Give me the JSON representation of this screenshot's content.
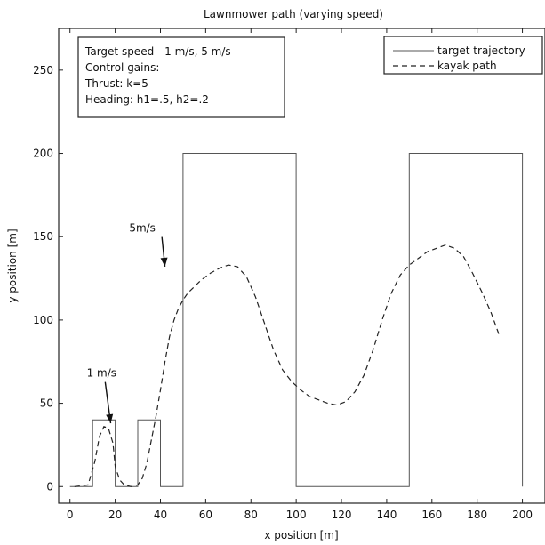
{
  "chart_data": {
    "type": "line",
    "title": "Lawnmower path (varying speed)",
    "xlabel": "x position [m]",
    "ylabel": "y position [m]",
    "xlim": [
      -5,
      210
    ],
    "ylim": [
      -10,
      275
    ],
    "xticks": [
      0,
      20,
      40,
      60,
      80,
      100,
      120,
      140,
      160,
      180,
      200
    ],
    "yticks": [
      0,
      50,
      100,
      150,
      200,
      250
    ],
    "grid": false,
    "legend_position": "top-right",
    "series": [
      {
        "name": "target trajectory",
        "style": "solid",
        "color": "#555555",
        "x": [
          0,
          10,
          10,
          20,
          20,
          30,
          30,
          40,
          40,
          50,
          50,
          100,
          100,
          150,
          150,
          200,
          200
        ],
        "y": [
          0,
          0,
          40,
          40,
          0,
          0,
          40,
          40,
          0,
          0,
          200,
          200,
          0,
          0,
          200,
          200,
          0
        ]
      },
      {
        "name": "kayak path",
        "style": "dashed",
        "color": "#222222",
        "x": [
          2,
          8,
          11,
          13,
          15,
          17,
          19,
          20,
          22,
          24,
          27,
          30,
          32,
          34,
          36,
          38,
          40,
          42,
          44,
          46,
          48,
          50,
          52,
          55,
          58,
          62,
          66,
          70,
          74,
          78,
          82,
          86,
          90,
          94,
          98,
          102,
          106,
          110,
          114,
          118,
          122,
          126,
          130,
          134,
          138,
          142,
          146,
          150,
          154,
          158,
          162,
          166,
          170,
          174,
          178,
          182,
          186,
          190
        ],
        "y": [
          0,
          1,
          15,
          30,
          36,
          35,
          26,
          12,
          4,
          1,
          0,
          1,
          5,
          14,
          28,
          42,
          58,
          75,
          90,
          100,
          107,
          112,
          116,
          120,
          124,
          128,
          131,
          133,
          132,
          126,
          114,
          98,
          82,
          70,
          63,
          58,
          54,
          52,
          50,
          49,
          51,
          57,
          67,
          82,
          100,
          116,
          127,
          133,
          137,
          141,
          143,
          145,
          143,
          138,
          128,
          117,
          105,
          90
        ]
      }
    ],
    "annotations": [
      {
        "text": "5m/s",
        "x": 32,
        "y": 153,
        "arrow_to": [
          42,
          132
        ]
      },
      {
        "text": "1 m/s",
        "x": 14,
        "y": 66,
        "arrow_to": [
          18,
          38
        ]
      }
    ],
    "info_box": [
      "Target speed - 1 m/s, 5 m/s",
      "Control gains:",
      "Thrust: k=5",
      "Heading: h1=.5, h2=.2"
    ]
  }
}
